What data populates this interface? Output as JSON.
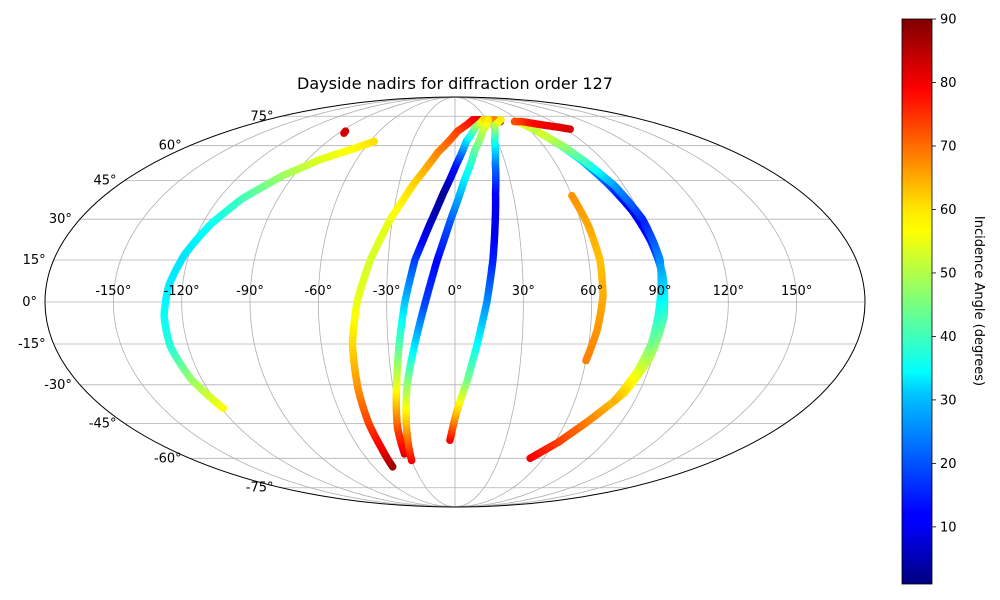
{
  "chart_data": {
    "type": "scatter",
    "projection": "mollweide",
    "title": "Dayside nadirs for diffraction order 127",
    "xlabel": "",
    "ylabel": "",
    "grid": true,
    "lon_ticks": [
      -150,
      -120,
      -90,
      -60,
      -30,
      0,
      30,
      60,
      90,
      120,
      150
    ],
    "lon_tick_labels": [
      "-150°",
      "-120°",
      "-90°",
      "-60°",
      "-30°",
      "0°",
      "30°",
      "60°",
      "90°",
      "120°",
      "150°"
    ],
    "lat_ticks": [
      -75,
      -60,
      -45,
      -30,
      -15,
      0,
      15,
      30,
      45,
      60,
      75
    ],
    "lat_tick_labels": [
      "-75°",
      "-60°",
      "-45°",
      "-30°",
      "-15°",
      "0°",
      "15°",
      "30°",
      "45°",
      "60°",
      "75°"
    ],
    "colorbar": {
      "label": "Incidence Angle (degrees)",
      "colormap": "jet",
      "range": [
        1,
        90
      ],
      "ticks": [
        10,
        20,
        30,
        40,
        50,
        60,
        70,
        80,
        90
      ],
      "tick_labels": [
        "10",
        "20",
        "30",
        "40",
        "50",
        "60",
        "70",
        "80",
        "90"
      ]
    },
    "tracks": [
      {
        "points": [
          [
            -119,
            -39,
            57
          ],
          [
            -125,
            -28,
            48
          ],
          [
            -128,
            -16,
            38
          ],
          [
            -128,
            -5,
            35
          ],
          [
            -126,
            6,
            33
          ],
          [
            -122,
            17,
            32
          ],
          [
            -116,
            28,
            35
          ],
          [
            -108,
            38,
            40
          ],
          [
            -96,
            47,
            48
          ],
          [
            -82,
            54,
            54
          ],
          [
            -66,
            59,
            57
          ],
          [
            -57,
            62,
            59
          ]
        ]
      },
      {
        "points": [
          [
            -86,
            66,
            82
          ],
          [
            -87,
            67,
            83
          ]
        ]
      },
      {
        "points": [
          [
            -46,
            -64,
            88
          ],
          [
            -46,
            -55,
            80
          ],
          [
            -47,
            -45,
            74
          ],
          [
            -47,
            -32,
            67
          ],
          [
            -46,
            -15,
            60
          ],
          [
            -43,
            0,
            55
          ],
          [
            -38,
            15,
            53
          ],
          [
            -31,
            30,
            55
          ],
          [
            -22,
            44,
            60
          ],
          [
            -11,
            57,
            67
          ],
          [
            2,
            67,
            73
          ],
          [
            17,
            73,
            78
          ],
          [
            30,
            73,
            84
          ],
          [
            42,
            72,
            88
          ]
        ]
      },
      {
        "points": [
          [
            -33,
            -58,
            82
          ],
          [
            -32,
            -47,
            73
          ],
          [
            -28,
            -30,
            55
          ],
          [
            -25,
            -15,
            42
          ],
          [
            -22,
            0,
            30
          ],
          [
            -18,
            15,
            18
          ],
          [
            -12,
            28,
            8
          ],
          [
            -6,
            40,
            3
          ],
          [
            1,
            52,
            14
          ],
          [
            8,
            62,
            30
          ],
          [
            17,
            69,
            45
          ],
          [
            27,
            73,
            58
          ],
          [
            38,
            73,
            68
          ]
        ]
      },
      {
        "points": [
          [
            -30,
            -61,
            80
          ],
          [
            -27,
            -47,
            65
          ],
          [
            -23,
            -30,
            48
          ],
          [
            -18,
            -15,
            32
          ],
          [
            -13,
            0,
            18
          ],
          [
            -8,
            15,
            12
          ],
          [
            -2,
            30,
            20
          ],
          [
            5,
            45,
            32
          ],
          [
            13,
            58,
            42
          ],
          [
            22,
            67,
            50
          ],
          [
            32,
            73,
            58
          ]
        ]
      },
      {
        "points": [
          [
            -3,
            -52,
            80
          ],
          [
            1,
            -40,
            62
          ],
          [
            6,
            -28,
            45
          ],
          [
            10,
            -15,
            35
          ],
          [
            14,
            0,
            25
          ],
          [
            17,
            15,
            15
          ],
          [
            19,
            28,
            10
          ],
          [
            21,
            40,
            12
          ],
          [
            24,
            52,
            22
          ],
          [
            28,
            62,
            35
          ],
          [
            34,
            70,
            48
          ],
          [
            44,
            73,
            58
          ]
        ]
      },
      {
        "points": [
          [
            51,
            -60,
            80
          ],
          [
            62,
            -53,
            74
          ],
          [
            72,
            -44,
            68
          ],
          [
            83,
            -33,
            60
          ],
          [
            89,
            -20,
            50
          ],
          [
            92,
            -5,
            40
          ],
          [
            92,
            10,
            28
          ],
          [
            90,
            22,
            14
          ],
          [
            87,
            33,
            10
          ],
          [
            82,
            44,
            18
          ],
          [
            77,
            53,
            30
          ],
          [
            72,
            60,
            40
          ],
          [
            65,
            67,
            50
          ],
          [
            58,
            72,
            55
          ]
        ]
      },
      {
        "points": [
          [
            80,
            -36,
            64
          ],
          [
            85,
            -25,
            55
          ],
          [
            88,
            -15,
            45
          ],
          [
            90,
            0,
            35
          ],
          [
            92,
            15,
            25
          ],
          [
            90,
            30,
            15
          ],
          [
            85,
            43,
            25
          ],
          [
            79,
            52,
            38
          ],
          [
            73,
            60,
            47
          ],
          [
            66,
            66,
            53
          ]
        ]
      },
      {
        "points": [
          [
            55,
            72,
            72
          ],
          [
            62,
            72,
            74
          ],
          [
            70,
            71,
            78
          ],
          [
            78,
            70,
            80
          ],
          [
            87,
            69,
            81
          ],
          [
            94,
            68,
            82
          ]
        ]
      },
      {
        "points": [
          [
            60,
            -21,
            68
          ],
          [
            63,
            -10,
            66
          ],
          [
            65,
            2,
            64
          ],
          [
            65,
            15,
            62
          ],
          [
            63,
            28,
            64
          ],
          [
            60,
            39,
            66
          ]
        ]
      }
    ]
  }
}
